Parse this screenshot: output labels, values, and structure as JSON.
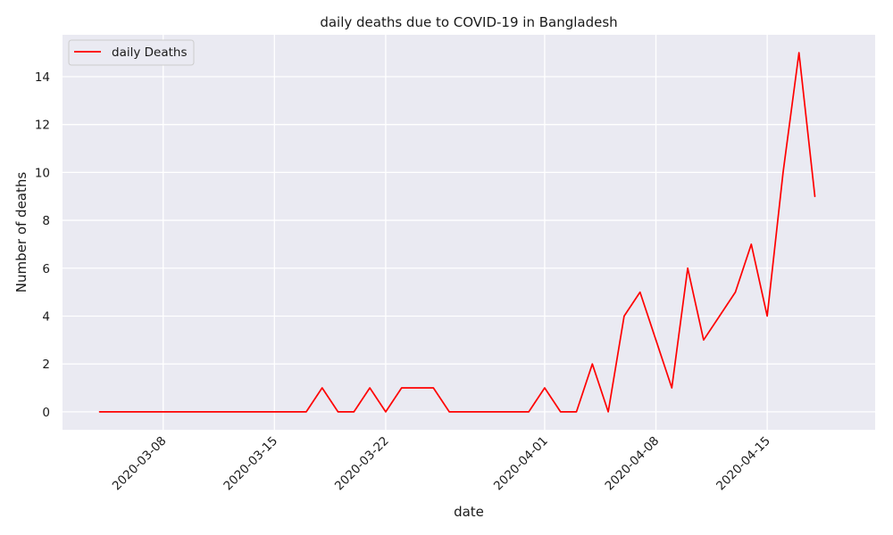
{
  "chart_data": {
    "type": "line",
    "title": "daily deaths due to COVID-19 in Bangladesh",
    "xlabel": "date",
    "ylabel": "Number of deaths",
    "x_ticks": [
      "2020-03-08",
      "2020-03-15",
      "2020-03-22",
      "2020-04-01",
      "2020-04-08",
      "2020-04-15"
    ],
    "y_ticks": [
      0,
      2,
      4,
      6,
      8,
      10,
      12,
      14
    ],
    "xlim": [
      "2020-03-01T16:00",
      "2020-04-21T19:00"
    ],
    "ylim": [
      -0.75,
      15.75
    ],
    "grid": true,
    "legend_position": "top-left",
    "series": [
      {
        "name": "daily Deaths",
        "color": "#ff0000",
        "x": [
          "2020-03-04",
          "2020-03-05",
          "2020-03-06",
          "2020-03-07",
          "2020-03-08",
          "2020-03-09",
          "2020-03-10",
          "2020-03-11",
          "2020-03-12",
          "2020-03-13",
          "2020-03-14",
          "2020-03-15",
          "2020-03-16",
          "2020-03-17",
          "2020-03-18",
          "2020-03-19",
          "2020-03-20",
          "2020-03-21",
          "2020-03-22",
          "2020-03-23",
          "2020-03-24",
          "2020-03-25",
          "2020-03-26",
          "2020-03-27",
          "2020-03-28",
          "2020-03-29",
          "2020-03-30",
          "2020-03-31",
          "2020-04-01",
          "2020-04-02",
          "2020-04-03",
          "2020-04-04",
          "2020-04-05",
          "2020-04-06",
          "2020-04-07",
          "2020-04-08",
          "2020-04-09",
          "2020-04-10",
          "2020-04-11",
          "2020-04-12",
          "2020-04-13",
          "2020-04-14",
          "2020-04-15",
          "2020-04-16",
          "2020-04-17",
          "2020-04-18"
        ],
        "y": [
          0,
          0,
          0,
          0,
          0,
          0,
          0,
          0,
          0,
          0,
          0,
          0,
          0,
          0,
          1,
          0,
          0,
          1,
          0,
          1,
          1,
          1,
          0,
          0,
          0,
          0,
          0,
          0,
          1,
          0,
          0,
          2,
          0,
          4,
          5,
          3,
          1,
          6,
          3,
          4,
          5,
          7,
          4,
          10,
          15,
          9
        ]
      }
    ]
  },
  "colors": {
    "plot_background": "#eaeaf2",
    "grid": "#ffffff"
  }
}
